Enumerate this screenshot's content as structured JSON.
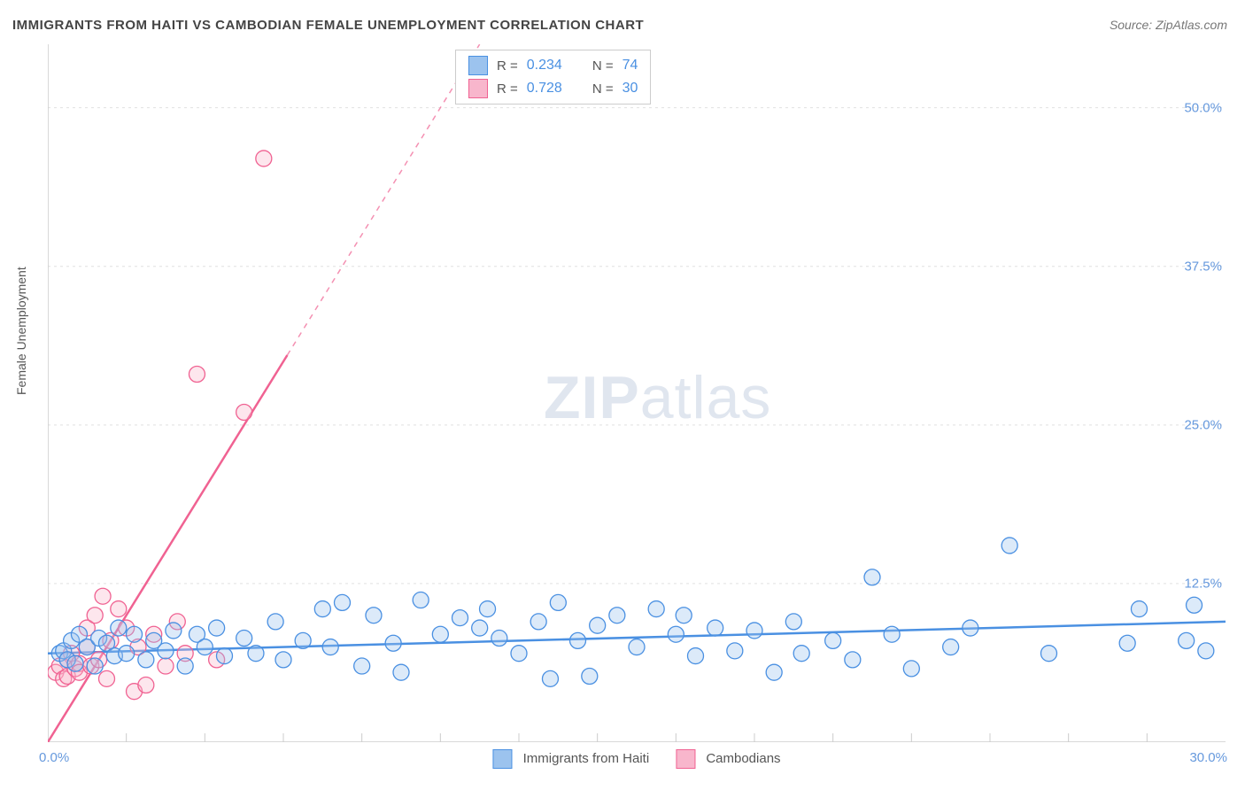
{
  "title": "IMMIGRANTS FROM HAITI VS CAMBODIAN FEMALE UNEMPLOYMENT CORRELATION CHART",
  "source": "Source: ZipAtlas.com",
  "ylabel": "Female Unemployment",
  "watermark_zip": "ZIP",
  "watermark_atlas": "atlas",
  "chart": {
    "type": "scatter",
    "background_color": "#ffffff",
    "grid_color": "#e0e0e0",
    "axis_color": "#cccccc",
    "tick_color": "#cccccc",
    "label_color": "#6699dd",
    "xlim": [
      0,
      30
    ],
    "ylim": [
      0,
      55
    ],
    "x_tick_start_label": "0.0%",
    "x_tick_end_label": "30.0%",
    "y_ticks": [
      12.5,
      25.0,
      37.5,
      50.0
    ],
    "y_tick_labels": [
      "12.5%",
      "25.0%",
      "37.5%",
      "50.0%"
    ],
    "x_minor_ticks": [
      2,
      4,
      6,
      8,
      10,
      12,
      14,
      16,
      18,
      20,
      22,
      24,
      26,
      28
    ],
    "marker_radius": 9,
    "marker_fill_opacity": 0.35,
    "series": [
      {
        "name": "Immigrants from Haiti",
        "color_stroke": "#4a90e2",
        "color_fill": "#9cc3ee",
        "R": "0.234",
        "N": "74",
        "trend": {
          "x1": 0,
          "y1": 7.0,
          "x2": 30,
          "y2": 9.5,
          "width": 2.5
        },
        "points": [
          [
            0.3,
            7.0
          ],
          [
            0.4,
            7.2
          ],
          [
            0.5,
            6.5
          ],
          [
            0.6,
            8.0
          ],
          [
            0.7,
            6.2
          ],
          [
            0.8,
            8.5
          ],
          [
            1.0,
            7.5
          ],
          [
            1.2,
            6.0
          ],
          [
            1.3,
            8.2
          ],
          [
            1.5,
            7.8
          ],
          [
            1.7,
            6.8
          ],
          [
            1.8,
            9.0
          ],
          [
            2.0,
            7.0
          ],
          [
            2.2,
            8.5
          ],
          [
            2.5,
            6.5
          ],
          [
            2.7,
            8.0
          ],
          [
            3.0,
            7.2
          ],
          [
            3.2,
            8.8
          ],
          [
            3.5,
            6.0
          ],
          [
            3.8,
            8.5
          ],
          [
            4.0,
            7.5
          ],
          [
            4.3,
            9.0
          ],
          [
            4.5,
            6.8
          ],
          [
            5.0,
            8.2
          ],
          [
            5.3,
            7.0
          ],
          [
            5.8,
            9.5
          ],
          [
            6.0,
            6.5
          ],
          [
            6.5,
            8.0
          ],
          [
            7.0,
            10.5
          ],
          [
            7.2,
            7.5
          ],
          [
            7.5,
            11.0
          ],
          [
            8.0,
            6.0
          ],
          [
            8.3,
            10.0
          ],
          [
            8.8,
            7.8
          ],
          [
            9.0,
            5.5
          ],
          [
            9.5,
            11.2
          ],
          [
            10.0,
            8.5
          ],
          [
            10.5,
            9.8
          ],
          [
            11.0,
            9.0
          ],
          [
            11.2,
            10.5
          ],
          [
            11.5,
            8.2
          ],
          [
            12.0,
            7.0
          ],
          [
            12.5,
            9.5
          ],
          [
            12.8,
            5.0
          ],
          [
            13.0,
            11.0
          ],
          [
            13.5,
            8.0
          ],
          [
            13.8,
            5.2
          ],
          [
            14.0,
            9.2
          ],
          [
            14.5,
            10.0
          ],
          [
            15.0,
            7.5
          ],
          [
            15.5,
            10.5
          ],
          [
            16.0,
            8.5
          ],
          [
            16.2,
            10.0
          ],
          [
            16.5,
            6.8
          ],
          [
            17.0,
            9.0
          ],
          [
            17.5,
            7.2
          ],
          [
            18.0,
            8.8
          ],
          [
            18.5,
            5.5
          ],
          [
            19.0,
            9.5
          ],
          [
            19.2,
            7.0
          ],
          [
            20.0,
            8.0
          ],
          [
            20.5,
            6.5
          ],
          [
            21.0,
            13.0
          ],
          [
            21.5,
            8.5
          ],
          [
            22.0,
            5.8
          ],
          [
            23.0,
            7.5
          ],
          [
            23.5,
            9.0
          ],
          [
            24.5,
            15.5
          ],
          [
            25.5,
            7.0
          ],
          [
            27.5,
            7.8
          ],
          [
            27.8,
            10.5
          ],
          [
            29.0,
            8.0
          ],
          [
            29.2,
            10.8
          ],
          [
            29.5,
            7.2
          ]
        ]
      },
      {
        "name": "Cambodians",
        "color_stroke": "#f06292",
        "color_fill": "#f8b6cc",
        "R": "0.728",
        "N": "30",
        "trend": {
          "x1": 0,
          "y1": 0,
          "x2": 6.1,
          "y2": 30.5,
          "width": 2.5
        },
        "trend_dash": {
          "x1": 6.1,
          "y1": 30.5,
          "x2": 11.0,
          "y2": 55.0
        },
        "points": [
          [
            0.2,
            5.5
          ],
          [
            0.3,
            6.0
          ],
          [
            0.4,
            5.0
          ],
          [
            0.5,
            6.5
          ],
          [
            0.5,
            5.2
          ],
          [
            0.6,
            7.0
          ],
          [
            0.7,
            5.8
          ],
          [
            0.8,
            6.2
          ],
          [
            0.8,
            5.5
          ],
          [
            1.0,
            7.5
          ],
          [
            1.0,
            9.0
          ],
          [
            1.1,
            6.0
          ],
          [
            1.2,
            10.0
          ],
          [
            1.3,
            6.5
          ],
          [
            1.4,
            11.5
          ],
          [
            1.5,
            5.0
          ],
          [
            1.6,
            8.0
          ],
          [
            1.8,
            10.5
          ],
          [
            2.0,
            9.0
          ],
          [
            2.2,
            4.0
          ],
          [
            2.3,
            7.5
          ],
          [
            2.5,
            4.5
          ],
          [
            2.7,
            8.5
          ],
          [
            3.0,
            6.0
          ],
          [
            3.3,
            9.5
          ],
          [
            3.5,
            7.0
          ],
          [
            3.8,
            29.0
          ],
          [
            4.3,
            6.5
          ],
          [
            5.0,
            26.0
          ],
          [
            5.5,
            46.0
          ]
        ]
      }
    ]
  },
  "legend_top": {
    "R_label": "R =",
    "N_label": "N ="
  },
  "legend_bottom": [
    "Immigrants from Haiti",
    "Cambodians"
  ]
}
